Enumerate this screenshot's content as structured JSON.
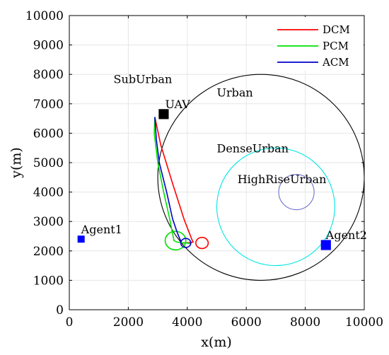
{
  "chart_data": {
    "type": "line",
    "xlabel": "x(m)",
    "ylabel": "y(m)",
    "xlim": [
      0,
      10000
    ],
    "ylim": [
      0,
      10000
    ],
    "xticks": [
      "0",
      "2000",
      "4000",
      "6000",
      "8000",
      "10000"
    ],
    "yticks": [
      "0",
      "1000",
      "2000",
      "3000",
      "4000",
      "5000",
      "6000",
      "7000",
      "8000",
      "9000",
      "10000"
    ],
    "xtick_values": [
      0,
      2000,
      4000,
      6000,
      8000,
      10000
    ],
    "ytick_values": [
      0,
      1000,
      2000,
      3000,
      4000,
      5000,
      6000,
      7000,
      8000,
      9000,
      10000
    ],
    "grid": true,
    "legend_position": "top-right",
    "series": [
      {
        "name": "DCM",
        "color": "#ff0000",
        "x": [
          2900,
          3100,
          3500,
          3900,
          4150,
          4200,
          4050,
          3850
        ],
        "y": [
          6550,
          5600,
          4300,
          3050,
          2400,
          2300,
          2280,
          2270
        ],
        "loop": {
          "cx": 4500,
          "cy": 2270,
          "r": 210
        }
      },
      {
        "name": "PCM",
        "color": "#00e000",
        "x": [
          2900,
          2880,
          3000,
          3200,
          3400,
          3500,
          3550,
          3650,
          3800,
          3950,
          4050,
          4100
        ],
        "y": [
          6550,
          6000,
          5000,
          4000,
          3100,
          2600,
          2350,
          2300,
          2280,
          2270,
          2260,
          2250
        ],
        "loop": {
          "cx": 3600,
          "cy": 2350,
          "r": 350
        }
      },
      {
        "name": "ACM",
        "color": "#0000cc",
        "x": [
          2900,
          2950,
          3050,
          3300,
          3500,
          3650,
          3750,
          3800
        ],
        "y": [
          6550,
          5800,
          5000,
          4000,
          3100,
          2650,
          2400,
          2300
        ],
        "loop": {
          "cx": 3950,
          "cy": 2270,
          "r": 170
        }
      }
    ],
    "regions": [
      {
        "name": "Urban",
        "cx": 6500,
        "cy": 4500,
        "r": 3500,
        "color": "#000000"
      },
      {
        "name": "DenseUrban",
        "cx": 7000,
        "cy": 3500,
        "r": 2000,
        "color": "#00e5e5"
      },
      {
        "name": "HighRiseUrban",
        "cx": 7700,
        "cy": 4000,
        "r": 600,
        "color": "#7070cc"
      }
    ],
    "region_labels": [
      {
        "text": "SubUrban",
        "x": 1500,
        "y": 7700
      },
      {
        "text": "Urban",
        "x": 5000,
        "y": 7250
      },
      {
        "text": "DenseUrban",
        "x": 5000,
        "y": 5350
      },
      {
        "text": "HighRiseUrban",
        "x": 5700,
        "y": 4300
      }
    ],
    "markers": [
      {
        "name": "UAV",
        "x": 3200,
        "y": 6650,
        "size": 340,
        "color": "#000000",
        "label_x": 3250,
        "label_y": 6850
      },
      {
        "name": "Agent1",
        "x": 400,
        "y": 2400,
        "size": 240,
        "color": "#0000ff",
        "label_x": 400,
        "label_y": 2600
      },
      {
        "name": "Agent2",
        "x": 8700,
        "y": 2200,
        "size": 340,
        "color": "#0000ff",
        "label_x": 8700,
        "label_y": 2400
      }
    ]
  }
}
